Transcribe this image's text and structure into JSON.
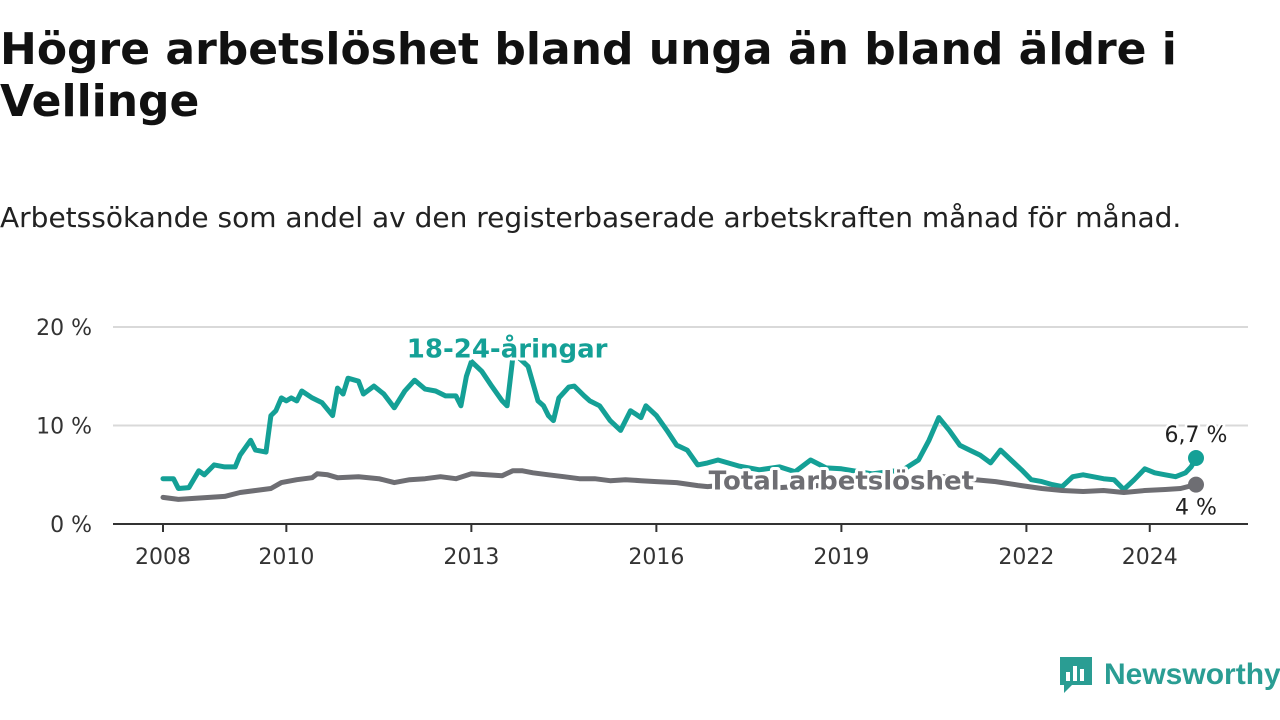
{
  "chart_data": {
    "type": "line",
    "title": "Högre arbetslöshet bland unga än bland äldre i Vellinge",
    "subtitle": "Arbetssökande som andel av den registerbaserade arbetskraften månad för månad.",
    "xlabel": "",
    "ylabel": "",
    "x_range": [
      2008,
      2024.75
    ],
    "ylim": [
      0,
      20
    ],
    "y_ticks": [
      {
        "value": 0,
        "label": "0 %"
      },
      {
        "value": 10,
        "label": "10 %"
      },
      {
        "value": 20,
        "label": "20 %"
      }
    ],
    "x_ticks": [
      {
        "value": 2008,
        "label": "2008"
      },
      {
        "value": 2010,
        "label": "2010"
      },
      {
        "value": 2013,
        "label": "2013"
      },
      {
        "value": 2016,
        "label": "2016"
      },
      {
        "value": 2019,
        "label": "2019"
      },
      {
        "value": 2022,
        "label": "2022"
      },
      {
        "value": 2024,
        "label": "2024"
      }
    ],
    "grid": true,
    "series": [
      {
        "name": "18-24-åringar",
        "color": "#14a096",
        "end_label": "6,7 %",
        "points": [
          [
            2008.0,
            4.6
          ],
          [
            2008.17,
            4.6
          ],
          [
            2008.25,
            3.6
          ],
          [
            2008.42,
            3.7
          ],
          [
            2008.58,
            5.4
          ],
          [
            2008.67,
            5.0
          ],
          [
            2008.83,
            6.0
          ],
          [
            2009.0,
            5.8
          ],
          [
            2009.17,
            5.8
          ],
          [
            2009.25,
            7.0
          ],
          [
            2009.42,
            8.5
          ],
          [
            2009.5,
            7.5
          ],
          [
            2009.67,
            7.3
          ],
          [
            2009.75,
            11.0
          ],
          [
            2009.83,
            11.5
          ],
          [
            2009.92,
            12.8
          ],
          [
            2010.0,
            12.5
          ],
          [
            2010.08,
            12.8
          ],
          [
            2010.17,
            12.5
          ],
          [
            2010.25,
            13.5
          ],
          [
            2010.42,
            12.8
          ],
          [
            2010.58,
            12.3
          ],
          [
            2010.75,
            11.0
          ],
          [
            2010.83,
            13.8
          ],
          [
            2010.92,
            13.2
          ],
          [
            2011.0,
            14.8
          ],
          [
            2011.17,
            14.5
          ],
          [
            2011.25,
            13.2
          ],
          [
            2011.42,
            14.0
          ],
          [
            2011.58,
            13.2
          ],
          [
            2011.75,
            11.8
          ],
          [
            2011.92,
            13.5
          ],
          [
            2012.08,
            14.6
          ],
          [
            2012.25,
            13.7
          ],
          [
            2012.42,
            13.5
          ],
          [
            2012.58,
            13.0
          ],
          [
            2012.75,
            13.0
          ],
          [
            2012.83,
            12.0
          ],
          [
            2012.92,
            15.0
          ],
          [
            2013.0,
            16.5
          ],
          [
            2013.17,
            15.5
          ],
          [
            2013.33,
            14.0
          ],
          [
            2013.5,
            12.5
          ],
          [
            2013.58,
            12.0
          ],
          [
            2013.67,
            16.8
          ],
          [
            2013.75,
            17.0
          ],
          [
            2013.92,
            16.0
          ],
          [
            2014.08,
            12.5
          ],
          [
            2014.17,
            12.0
          ],
          [
            2014.25,
            11.0
          ],
          [
            2014.33,
            10.5
          ],
          [
            2014.42,
            12.8
          ],
          [
            2014.58,
            13.9
          ],
          [
            2014.67,
            14.0
          ],
          [
            2014.83,
            13.0
          ],
          [
            2014.92,
            12.5
          ],
          [
            2015.08,
            12.0
          ],
          [
            2015.25,
            10.5
          ],
          [
            2015.42,
            9.5
          ],
          [
            2015.58,
            11.5
          ],
          [
            2015.75,
            10.8
          ],
          [
            2015.83,
            12.0
          ],
          [
            2016.0,
            11.0
          ],
          [
            2016.17,
            9.5
          ],
          [
            2016.33,
            8.0
          ],
          [
            2016.5,
            7.5
          ],
          [
            2016.67,
            6.0
          ],
          [
            2016.83,
            6.2
          ],
          [
            2017.0,
            6.5
          ],
          [
            2017.33,
            5.9
          ],
          [
            2017.67,
            5.5
          ],
          [
            2018.0,
            5.8
          ],
          [
            2018.25,
            5.3
          ],
          [
            2018.5,
            6.5
          ],
          [
            2018.75,
            5.7
          ],
          [
            2019.0,
            5.6
          ],
          [
            2019.5,
            5.1
          ],
          [
            2020.0,
            5.5
          ],
          [
            2020.25,
            6.5
          ],
          [
            2020.42,
            8.5
          ],
          [
            2020.58,
            10.8
          ],
          [
            2020.75,
            9.5
          ],
          [
            2020.92,
            8.0
          ],
          [
            2021.08,
            7.5
          ],
          [
            2021.25,
            7.0
          ],
          [
            2021.42,
            6.2
          ],
          [
            2021.58,
            7.5
          ],
          [
            2021.75,
            6.5
          ],
          [
            2021.92,
            5.5
          ],
          [
            2022.08,
            4.5
          ],
          [
            2022.25,
            4.3
          ],
          [
            2022.42,
            4.0
          ],
          [
            2022.58,
            3.8
          ],
          [
            2022.75,
            4.8
          ],
          [
            2022.92,
            5.0
          ],
          [
            2023.08,
            4.8
          ],
          [
            2023.25,
            4.6
          ],
          [
            2023.42,
            4.5
          ],
          [
            2023.58,
            3.5
          ],
          [
            2023.75,
            4.5
          ],
          [
            2023.92,
            5.6
          ],
          [
            2024.08,
            5.2
          ],
          [
            2024.25,
            5.0
          ],
          [
            2024.42,
            4.8
          ],
          [
            2024.58,
            5.2
          ],
          [
            2024.67,
            5.8
          ],
          [
            2024.75,
            6.7
          ]
        ]
      },
      {
        "name": "Total arbetslöshet",
        "color": "#6e6e73",
        "end_label": "4 %",
        "points": [
          [
            2008.0,
            2.7
          ],
          [
            2008.25,
            2.5
          ],
          [
            2008.5,
            2.6
          ],
          [
            2008.75,
            2.7
          ],
          [
            2009.0,
            2.8
          ],
          [
            2009.25,
            3.2
          ],
          [
            2009.5,
            3.4
          ],
          [
            2009.75,
            3.6
          ],
          [
            2009.92,
            4.2
          ],
          [
            2010.17,
            4.5
          ],
          [
            2010.42,
            4.7
          ],
          [
            2010.5,
            5.1
          ],
          [
            2010.67,
            5.0
          ],
          [
            2010.83,
            4.7
          ],
          [
            2011.17,
            4.8
          ],
          [
            2011.5,
            4.6
          ],
          [
            2011.75,
            4.2
          ],
          [
            2012.0,
            4.5
          ],
          [
            2012.25,
            4.6
          ],
          [
            2012.5,
            4.8
          ],
          [
            2012.75,
            4.6
          ],
          [
            2013.0,
            5.1
          ],
          [
            2013.25,
            5.0
          ],
          [
            2013.5,
            4.9
          ],
          [
            2013.67,
            5.4
          ],
          [
            2013.83,
            5.4
          ],
          [
            2014.0,
            5.2
          ],
          [
            2014.25,
            5.0
          ],
          [
            2014.5,
            4.8
          ],
          [
            2014.75,
            4.6
          ],
          [
            2015.0,
            4.6
          ],
          [
            2015.25,
            4.4
          ],
          [
            2015.5,
            4.5
          ],
          [
            2015.75,
            4.4
          ],
          [
            2016.0,
            4.3
          ],
          [
            2016.33,
            4.2
          ],
          [
            2016.67,
            3.9
          ],
          [
            2016.83,
            3.8
          ],
          [
            2017.0,
            3.9
          ],
          [
            2017.5,
            3.8
          ],
          [
            2018.0,
            3.7
          ],
          [
            2018.5,
            3.9
          ],
          [
            2019.0,
            3.9
          ],
          [
            2019.5,
            3.8
          ],
          [
            2020.0,
            4.0
          ],
          [
            2020.5,
            4.9
          ],
          [
            2021.0,
            4.6
          ],
          [
            2021.5,
            4.3
          ],
          [
            2021.92,
            3.9
          ],
          [
            2022.25,
            3.6
          ],
          [
            2022.58,
            3.4
          ],
          [
            2022.92,
            3.3
          ],
          [
            2023.25,
            3.4
          ],
          [
            2023.58,
            3.2
          ],
          [
            2023.92,
            3.4
          ],
          [
            2024.25,
            3.5
          ],
          [
            2024.5,
            3.6
          ],
          [
            2024.75,
            4.0
          ]
        ]
      }
    ],
    "annotations": [
      {
        "text": "18-24-åringar",
        "x": 2013.58,
        "y": 17.8,
        "color": "#14a096"
      },
      {
        "text": "Total arbetslöshet",
        "x": 2019.0,
        "y": 4.4,
        "color": "#6e6e73"
      }
    ]
  },
  "branding": {
    "name": "Newsworthy",
    "icon": "newsworthy-logo-icon",
    "color": "#2a9d93"
  }
}
